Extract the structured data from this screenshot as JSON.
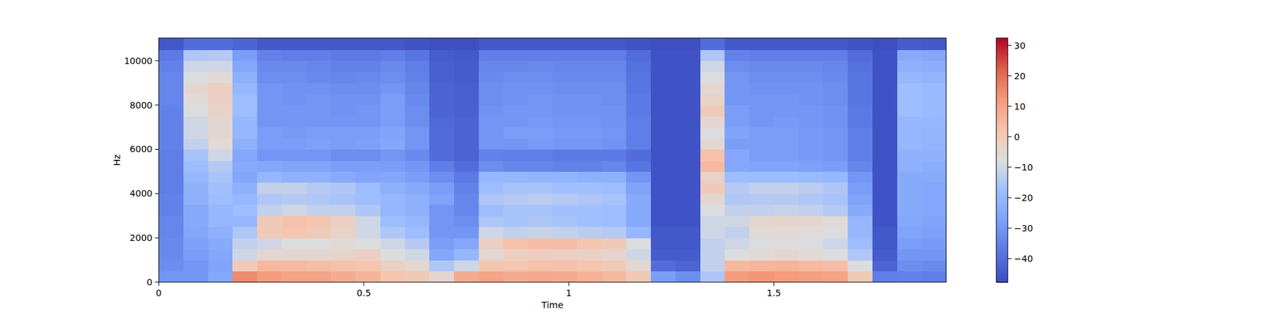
{
  "chart_data": {
    "type": "heatmap",
    "x_label": "Time",
    "y_label": "Hz",
    "color": "coolwarm",
    "xlim": [
      0,
      1.92
    ],
    "ylim": [
      0,
      11025
    ],
    "xticks": [
      0,
      0.5,
      1,
      1.5
    ],
    "yticks": [
      0,
      2000,
      4000,
      6000,
      8000,
      10000
    ],
    "colorbar_range": [
      -47.7,
      32.4
    ],
    "colorbar_ticks": [
      {
        "value": -40,
        "label": "−40"
      },
      {
        "value": -30,
        "label": "−30"
      },
      {
        "value": -20,
        "label": "−20"
      },
      {
        "value": -10,
        "label": "−10"
      },
      0,
      10,
      20,
      30
    ],
    "x_edges": [
      0,
      0.06,
      0.12,
      0.18,
      0.24,
      0.3,
      0.36,
      0.42,
      0.48,
      0.54,
      0.6,
      0.66,
      0.72,
      0.78,
      0.84,
      0.9,
      0.96,
      1.02,
      1.08,
      1.14,
      1.2,
      1.26,
      1.32,
      1.38,
      1.44,
      1.5,
      1.56,
      1.62,
      1.68,
      1.74,
      1.8,
      1.86,
      1.92
    ],
    "y_edges": [
      0,
      500,
      1000,
      1500,
      2000,
      2500,
      3000,
      3500,
      4000,
      4500,
      5000,
      5500,
      6000,
      6500,
      7000,
      7500,
      8000,
      8500,
      9000,
      9500,
      10000,
      10500,
      11025
    ],
    "values": [
      [
        -30,
        -32,
        -33,
        -33,
        -34,
        -34,
        -35,
        -35,
        -36,
        -36,
        -36,
        -36,
        -35,
        -35,
        -35,
        -35,
        -34,
        -34,
        -34,
        -35,
        -37,
        -45
      ],
      [
        -30,
        -30,
        -28,
        -27,
        -25,
        -24,
        -24,
        -22,
        -22,
        -20,
        -18,
        -16,
        -12,
        -10,
        -10,
        -8,
        -6,
        -5,
        -8,
        -10,
        -15,
        -40
      ],
      [
        -25,
        -26,
        -25,
        -24,
        -22,
        -20,
        -20,
        -18,
        -17,
        -16,
        -14,
        -10,
        -6,
        -5,
        -5,
        -3,
        -2,
        -2,
        -6,
        -10,
        -14,
        -40
      ],
      [
        15,
        0,
        -10,
        -12,
        -15,
        -20,
        -18,
        -20,
        -22,
        -25,
        -24,
        -25,
        -22,
        -20,
        -20,
        -18,
        -18,
        -20,
        -22,
        -25,
        -28,
        -42
      ],
      [
        12,
        5,
        -5,
        -10,
        0,
        0,
        -12,
        -15,
        -12,
        -20,
        -25,
        -30,
        -28,
        -28,
        -30,
        -30,
        -30,
        -30,
        -32,
        -33,
        -35,
        -45
      ],
      [
        10,
        5,
        -5,
        -8,
        2,
        3,
        -10,
        -14,
        -12,
        -22,
        -26,
        -30,
        -28,
        -29,
        -30,
        -30,
        -31,
        -31,
        -32,
        -33,
        -36,
        -45
      ],
      [
        10,
        4,
        -5,
        -8,
        0,
        2,
        -12,
        -15,
        -14,
        -22,
        -26,
        -30,
        -27,
        -28,
        -30,
        -30,
        -30,
        -31,
        -33,
        -34,
        -36,
        -45
      ],
      [
        8,
        3,
        -4,
        -6,
        -3,
        -2,
        -12,
        -16,
        -15,
        -24,
        -28,
        -32,
        -28,
        -28,
        -30,
        -31,
        -31,
        -32,
        -34,
        -35,
        -37,
        -45
      ],
      [
        6,
        2,
        -2,
        -8,
        -10,
        -10,
        -15,
        -18,
        -18,
        -26,
        -28,
        -32,
        -27,
        -28,
        -30,
        -30,
        -31,
        -32,
        -33,
        -35,
        -37,
        -45
      ],
      [
        2,
        -2,
        -8,
        -10,
        -15,
        -18,
        -20,
        -20,
        -22,
        -25,
        -28,
        -30,
        -25,
        -26,
        -28,
        -28,
        -28,
        -30,
        -32,
        -33,
        -36,
        -45
      ],
      [
        0,
        -5,
        -10,
        -14,
        -18,
        -20,
        -22,
        -22,
        -24,
        -28,
        -30,
        -33,
        -30,
        -30,
        -32,
        -32,
        -33,
        -34,
        -35,
        -36,
        -38,
        -46
      ],
      [
        -5,
        -15,
        -25,
        -28,
        -30,
        -30,
        -30,
        -26,
        -28,
        -32,
        -36,
        -40,
        -40,
        -40,
        -41,
        -42,
        -42,
        -42,
        -43,
        -43,
        -44,
        -47
      ],
      [
        8,
        -10,
        -20,
        -25,
        -30,
        -32,
        -34,
        -34,
        -35,
        -37,
        -40,
        -42,
        -42,
        -42,
        -42,
        -43,
        -43,
        -43,
        -44,
        -44,
        -45,
        -47
      ],
      [
        10,
        2,
        -5,
        -2,
        -10,
        -15,
        -18,
        -15,
        -18,
        -20,
        -32,
        -35,
        -30,
        -30,
        -30,
        -31,
        -32,
        -32,
        -33,
        -34,
        -36,
        -45
      ],
      [
        8,
        2,
        -2,
        3,
        -12,
        -16,
        -16,
        -14,
        -16,
        -20,
        -34,
        -36,
        -30,
        -28,
        -30,
        -30,
        -31,
        -31,
        -32,
        -34,
        -36,
        -45
      ],
      [
        9,
        3,
        -1,
        4,
        -11,
        -15,
        -16,
        -13,
        -16,
        -21,
        -34,
        -36,
        -29,
        -28,
        -29,
        -30,
        -30,
        -31,
        -32,
        -33,
        -36,
        -45
      ],
      [
        8,
        3,
        -2,
        4,
        -12,
        -16,
        -17,
        -14,
        -17,
        -21,
        -35,
        -37,
        -30,
        -29,
        -30,
        -31,
        -31,
        -32,
        -33,
        -34,
        -36,
        -45
      ],
      [
        7,
        2,
        -3,
        2,
        -13,
        -17,
        -17,
        -15,
        -17,
        -22,
        -35,
        -37,
        -30,
        -29,
        -30,
        -31,
        -31,
        -32,
        -33,
        -34,
        -36,
        -45
      ],
      [
        5,
        0,
        -4,
        0,
        -14,
        -18,
        -18,
        -16,
        -18,
        -22,
        -34,
        -37,
        -31,
        -30,
        -31,
        -31,
        -32,
        -32,
        -33,
        -34,
        -36,
        -45
      ],
      [
        0,
        -5,
        -10,
        -8,
        -20,
        -24,
        -24,
        -24,
        -26,
        -30,
        -38,
        -40,
        -36,
        -36,
        -36,
        -37,
        -37,
        -38,
        -38,
        -39,
        -40,
        -46
      ],
      [
        -28,
        -40,
        -44,
        -45,
        -45,
        -46,
        -46,
        -46,
        -46,
        -46,
        -46,
        -46,
        -46,
        -46,
        -46,
        -46,
        -46,
        -46,
        -46,
        -46,
        -46,
        -47
      ],
      [
        -32,
        -42,
        -44,
        -45,
        -45,
        -46,
        -46,
        -46,
        -46,
        -46,
        -46,
        -46,
        -46,
        -46,
        -46,
        -46,
        -46,
        -46,
        -46,
        -46,
        -46,
        -47
      ],
      [
        -15,
        -12,
        -12,
        -12,
        -10,
        -10,
        -8,
        -5,
        0,
        -3,
        5,
        3,
        -5,
        -8,
        -5,
        0,
        -3,
        -5,
        -8,
        -10,
        -15,
        -40
      ],
      [
        12,
        5,
        -8,
        -10,
        -12,
        -10,
        -12,
        -15,
        -14,
        -18,
        -25,
        -25,
        -28,
        -26,
        -28,
        -28,
        -30,
        -30,
        -30,
        -32,
        -35,
        -45
      ],
      [
        13,
        6,
        -6,
        -8,
        -6,
        -5,
        -12,
        -14,
        -12,
        -18,
        -26,
        -28,
        -28,
        -28,
        -30,
        -30,
        -30,
        -31,
        -32,
        -33,
        -36,
        -45
      ],
      [
        12,
        6,
        -5,
        -7,
        -6,
        -4,
        -11,
        -14,
        -12,
        -18,
        -26,
        -28,
        -28,
        -28,
        -29,
        -30,
        -30,
        -31,
        -32,
        -33,
        -36,
        -45
      ],
      [
        11,
        5,
        -6,
        -8,
        -7,
        -5,
        -12,
        -15,
        -13,
        -19,
        -27,
        -29,
        -29,
        -29,
        -30,
        -30,
        -31,
        -31,
        -32,
        -33,
        -36,
        -45
      ],
      [
        10,
        4,
        -8,
        -10,
        -8,
        -6,
        -14,
        -16,
        -15,
        -20,
        -28,
        -30,
        -30,
        -30,
        -31,
        -31,
        -32,
        -32,
        -33,
        -34,
        -36,
        -45
      ],
      [
        0,
        -8,
        -15,
        -18,
        -20,
        -20,
        -24,
        -26,
        -28,
        -30,
        -34,
        -36,
        -36,
        -36,
        -37,
        -37,
        -38,
        -38,
        -38,
        -39,
        -40,
        -46
      ],
      [
        -36,
        -42,
        -44,
        -45,
        -45,
        -46,
        -46,
        -46,
        -46,
        -46,
        -46,
        -46,
        -46,
        -46,
        -46,
        -46,
        -46,
        -46,
        -46,
        -46,
        -46,
        -47
      ],
      [
        -35,
        -32,
        -30,
        -28,
        -26,
        -25,
        -24,
        -24,
        -24,
        -24,
        -22,
        -22,
        -20,
        -20,
        -20,
        -18,
        -18,
        -18,
        -20,
        -22,
        -24,
        -44
      ],
      [
        -36,
        -33,
        -30,
        -29,
        -27,
        -26,
        -25,
        -25,
        -25,
        -24,
        -23,
        -22,
        -21,
        -21,
        -20,
        -19,
        -19,
        -19,
        -21,
        -23,
        -25,
        -45
      ]
    ]
  }
}
